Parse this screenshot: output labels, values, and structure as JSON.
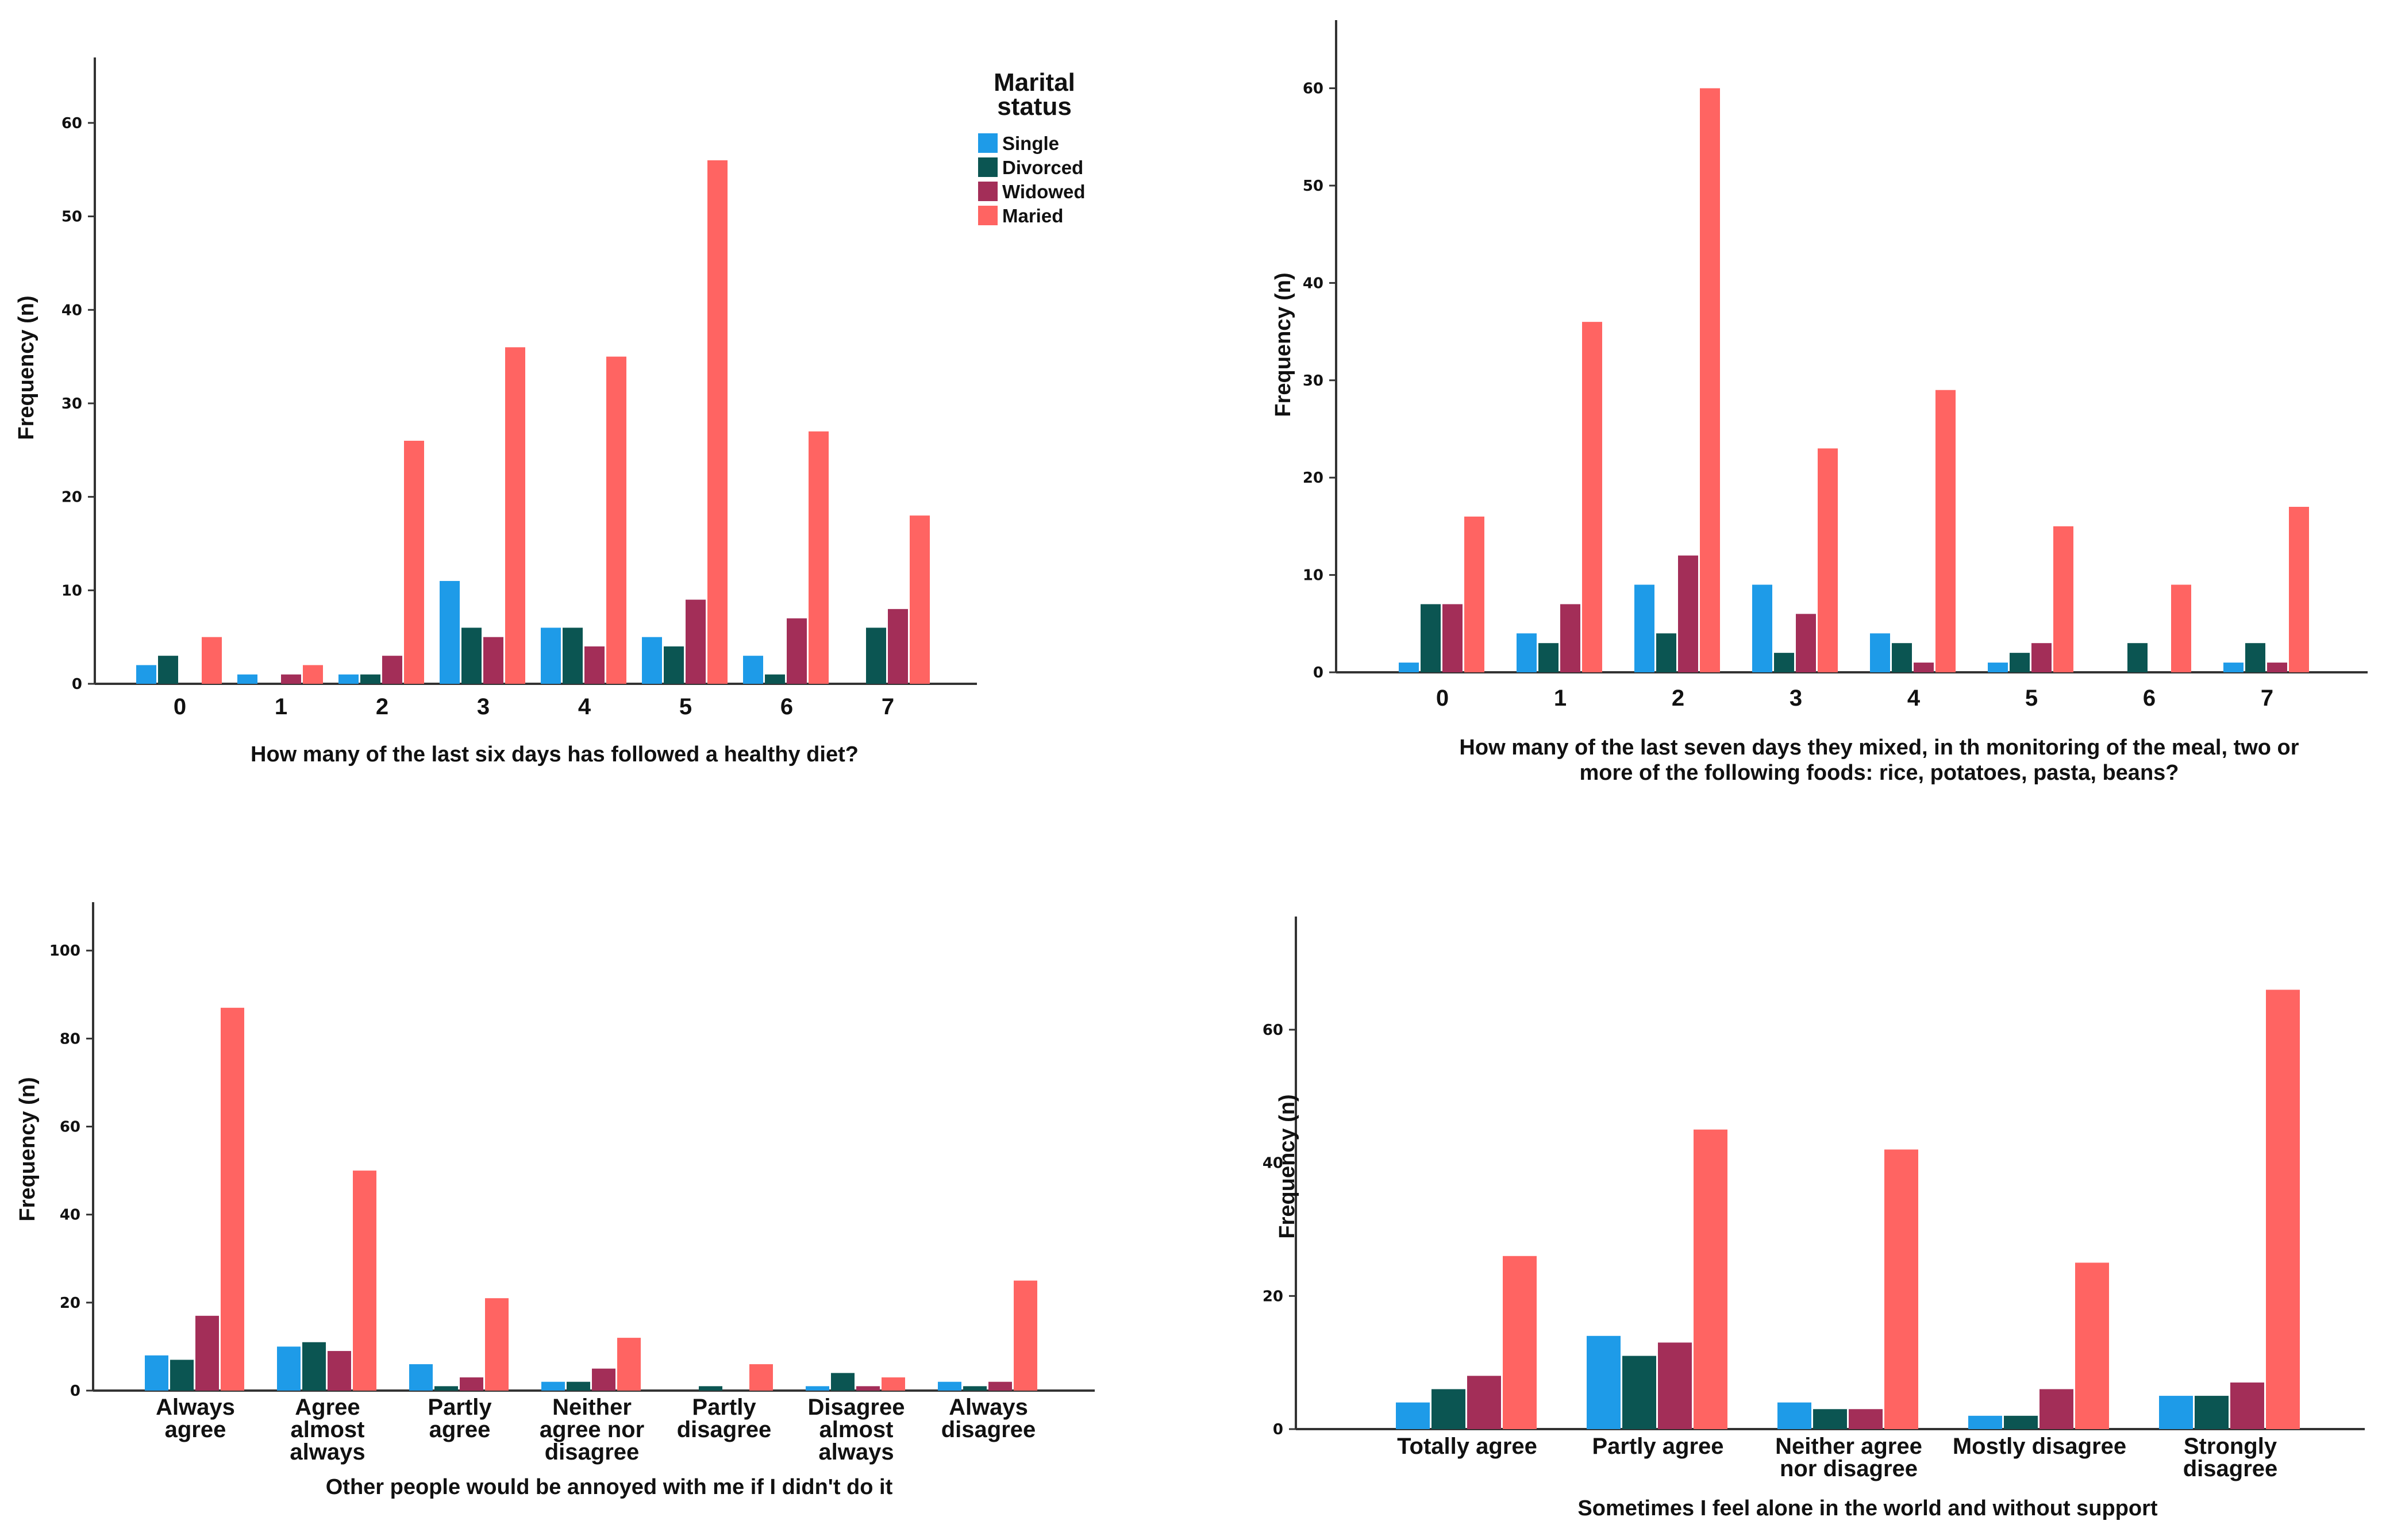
{
  "legend": {
    "title_lines": [
      "Marital",
      "status"
    ],
    "entries": [
      {
        "name": "Single",
        "color": "#1e9be8"
      },
      {
        "name": "Divorced",
        "color": "#0b5552"
      },
      {
        "name": "Widowed",
        "color": "#a32e58"
      },
      {
        "name": "Maried",
        "color": "#ff6462"
      }
    ]
  },
  "chart_data": [
    {
      "type": "bar",
      "title": "",
      "xlabel_lines": [
        "How many of the last six days has followed a healthy diet?"
      ],
      "ylabel": "Frequency (n)",
      "categories": [
        [
          "0"
        ],
        [
          "1"
        ],
        [
          "2"
        ],
        [
          "3"
        ],
        [
          "4"
        ],
        [
          "5"
        ],
        [
          "6"
        ],
        [
          "7"
        ]
      ],
      "ylim": [
        0,
        67
      ],
      "yticks": [
        0,
        10,
        20,
        30,
        40,
        50,
        60
      ],
      "series": [
        {
          "name": "Single",
          "values": [
            2,
            1,
            1,
            11,
            6,
            5,
            3,
            0
          ]
        },
        {
          "name": "Divorced",
          "values": [
            3,
            0,
            1,
            6,
            6,
            4,
            1,
            6
          ]
        },
        {
          "name": "Widowed",
          "values": [
            0,
            1,
            3,
            5,
            4,
            9,
            7,
            8
          ]
        },
        {
          "name": "Maried",
          "values": [
            5,
            2,
            26,
            36,
            35,
            56,
            27,
            18
          ]
        }
      ],
      "legend": "top-right"
    },
    {
      "type": "bar",
      "title": "",
      "xlabel_lines": [
        "How many of the last seven days they mixed, in th monitoring of the meal, two or",
        "more of the following foods: rice, potatoes, pasta, beans?"
      ],
      "ylabel": "Frequency (n)",
      "categories": [
        [
          "0"
        ],
        [
          "1"
        ],
        [
          "2"
        ],
        [
          "3"
        ],
        [
          "4"
        ],
        [
          "5"
        ],
        [
          "6"
        ],
        [
          "7"
        ]
      ],
      "ylim": [
        0,
        67
      ],
      "yticks": [
        0,
        10,
        20,
        30,
        40,
        50,
        60
      ],
      "series": [
        {
          "name": "Single",
          "values": [
            1,
            4,
            9,
            9,
            4,
            1,
            0,
            1
          ]
        },
        {
          "name": "Divorced",
          "values": [
            7,
            3,
            4,
            2,
            3,
            2,
            3,
            3
          ]
        },
        {
          "name": "Widowed",
          "values": [
            7,
            7,
            12,
            6,
            1,
            3,
            0,
            1
          ]
        },
        {
          "name": "Maried",
          "values": [
            16,
            36,
            60,
            23,
            29,
            15,
            9,
            17
          ]
        }
      ]
    },
    {
      "type": "bar",
      "title": "",
      "xlabel_lines": [
        "Other people would be annoyed with me if I didn't do it"
      ],
      "ylabel": "Frequency (n)",
      "categories": [
        [
          "Always",
          "agree"
        ],
        [
          "Agree",
          "almost",
          "always"
        ],
        [
          "Partly",
          "agree"
        ],
        [
          "Neither",
          "agree nor",
          "disagree"
        ],
        [
          "Partly",
          "disagree"
        ],
        [
          "Disagree",
          "almost",
          "always"
        ],
        [
          "Always",
          "disagree"
        ]
      ],
      "ylim": [
        0,
        111
      ],
      "yticks": [
        0,
        20,
        40,
        60,
        80,
        100
      ],
      "series": [
        {
          "name": "Single",
          "values": [
            8,
            10,
            6,
            2,
            0,
            1,
            2
          ]
        },
        {
          "name": "Divorced",
          "values": [
            7,
            11,
            1,
            2,
            1,
            4,
            1
          ]
        },
        {
          "name": "Widowed",
          "values": [
            17,
            9,
            3,
            5,
            0,
            1,
            2
          ]
        },
        {
          "name": "Maried",
          "values": [
            87,
            50,
            21,
            12,
            6,
            3,
            25
          ]
        }
      ]
    },
    {
      "type": "bar",
      "title": "",
      "xlabel_lines": [
        "Sometimes I feel alone in the world and without support"
      ],
      "ylabel": "Frequency (n)",
      "categories": [
        [
          "Totally agree"
        ],
        [
          "Partly agree"
        ],
        [
          "Neither agree",
          "nor disagree"
        ],
        [
          "Mostly disagree"
        ],
        [
          "Strongly",
          "disagree"
        ]
      ],
      "ylim": [
        0,
        77
      ],
      "yticks": [
        0,
        20,
        40,
        60
      ],
      "series": [
        {
          "name": "Single",
          "values": [
            4,
            14,
            4,
            2,
            5
          ]
        },
        {
          "name": "Divorced",
          "values": [
            6,
            11,
            3,
            2,
            5
          ]
        },
        {
          "name": "Widowed",
          "values": [
            8,
            13,
            3,
            6,
            7
          ]
        },
        {
          "name": "Maried",
          "values": [
            26,
            45,
            42,
            25,
            66
          ]
        }
      ]
    }
  ]
}
